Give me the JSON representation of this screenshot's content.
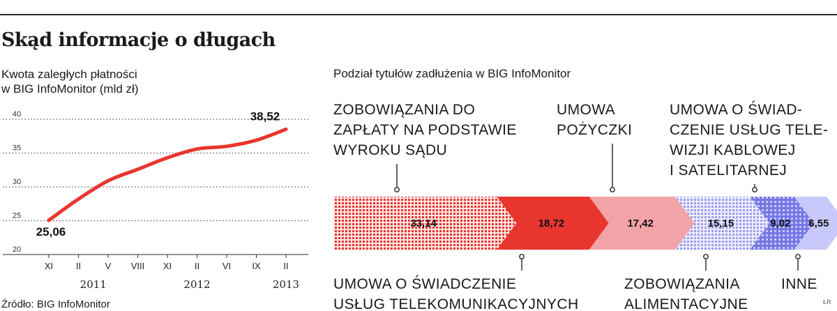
{
  "title": "Skąd informacje o długach",
  "line_chart": {
    "subtitle_lines": [
      "Kwota zaległych płatności",
      "w BIG InfoMonitor (mld zł)"
    ]
  },
  "bar_chart": {
    "subtitle": "Podział tytułów zadłużenia w BIG InfoMonitor"
  },
  "source": "Źródło: BIG InfoMonitor",
  "author_tag": "ŁR",
  "colors": {
    "line": "#e8352e",
    "grid": "#555555",
    "seg1": "#e8352e",
    "seg2": "#e8352e",
    "seg3": "#f2a3a7",
    "seg4": "#9a9cf0",
    "seg5": "#9a9cf0",
    "seg6": "#c8c9fa"
  },
  "chart_data": [
    {
      "type": "line",
      "title": "",
      "subtitle": "Kwota zaległych płatności w BIG InfoMonitor (mld zł)",
      "ylim": [
        20,
        40
      ],
      "yticks": [
        20,
        25,
        30,
        35,
        40
      ],
      "grid": true,
      "x": [
        "XI",
        "II",
        "V",
        "VIII",
        "XI",
        "II",
        "VI",
        "IX",
        "II"
      ],
      "years": [
        {
          "label": "2011",
          "under_index": 1.5
        },
        {
          "label": "2012",
          "under_index": 5
        },
        {
          "label": "2013",
          "under_index": 8
        }
      ],
      "series": [
        {
          "values": [
            25.06,
            28.2,
            30.9,
            32.6,
            34.3,
            35.6,
            36.0,
            36.9,
            38.52
          ]
        }
      ],
      "point_labels": [
        {
          "index": 0,
          "text": "25,06"
        },
        {
          "index": 8,
          "text": "38,52"
        }
      ]
    },
    {
      "type": "bar",
      "orientation": "horizontal-stacked",
      "title": "",
      "subtitle": "Podział tytułów zadłużenia w BIG InfoMonitor",
      "segments": [
        {
          "label": "ZOBOWIĄZANIA DO ZAPŁATY NA PODSTAWIE WYROKU SĄDU",
          "lines": [
            "ZOBOWIĄZANIA DO",
            "ZAPŁATY NA PODSTAWIE",
            "WYROKU SĄDU"
          ],
          "caption_position": "top",
          "value": 33.14,
          "value_label": "33,14",
          "pattern": "dots"
        },
        {
          "label": "UMOWA O ŚWIADCZENIE USŁUG TELEKOMUNIKACYJNYCH",
          "lines": [
            "UMOWA O ŚWIADCZENIE",
            "USŁUG TELEKOMUNIKACYJNYCH"
          ],
          "caption_position": "bottom",
          "value": 18.72,
          "value_label": "18,72",
          "pattern": "solid"
        },
        {
          "label": "UMOWA POŻYCZKI",
          "lines": [
            "UMOWA",
            "POŻYCZKI"
          ],
          "caption_position": "top",
          "value": 17.42,
          "value_label": "17,42",
          "pattern": "solid"
        },
        {
          "label": "ZOBOWIĄZANIA ALIMENTACYJNE",
          "lines": [
            "ZOBOWIĄZANIA",
            "ALIMENTACYJNE"
          ],
          "caption_position": "bottom",
          "value": 15.15,
          "value_label": "15,15",
          "pattern": "dots"
        },
        {
          "label": "UMOWA O ŚWIADCZENIE USŁUG TELEWIZJI KABLOWEJ I SATELITARNEJ",
          "lines": [
            "UMOWA O ŚWIAD-",
            "CZENIE USŁUG TELE-",
            "WIZJI KABLOWEJ",
            "I SATELITARNEJ"
          ],
          "caption_position": "top",
          "value": 9.02,
          "value_label": "9,02",
          "pattern": "grid"
        },
        {
          "label": "INNE",
          "lines": [
            "INNE"
          ],
          "caption_position": "bottom",
          "value": 6.55,
          "value_label": "6,55",
          "pattern": "solid"
        }
      ]
    }
  ]
}
